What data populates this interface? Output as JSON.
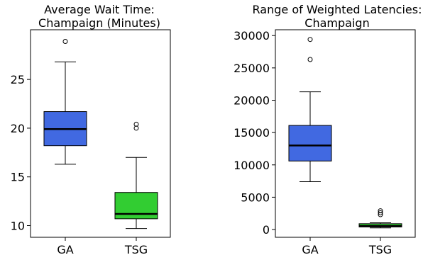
{
  "chart_data": [
    {
      "type": "box",
      "title": "Average Wait Time:\nChampaign (Minutes)",
      "xlabel": "",
      "ylabel": "",
      "categories": [
        "GA",
        "TSG"
      ],
      "ylim": [
        8.8,
        30.1
      ],
      "yticks": [
        10,
        15,
        20,
        25
      ],
      "grid": false,
      "boxes": [
        {
          "category": "GA",
          "color": "#4169e1",
          "whisker_low": 16.3,
          "q1": 18.2,
          "median": 19.9,
          "q3": 21.7,
          "whisker_high": 26.8,
          "outliers": [
            28.9
          ]
        },
        {
          "category": "TSG",
          "color": "#32cd32",
          "whisker_low": 9.7,
          "q1": 10.7,
          "median": 11.2,
          "q3": 13.4,
          "whisker_high": 17.0,
          "outliers": [
            20.0,
            20.4
          ]
        }
      ]
    },
    {
      "type": "box",
      "title": "Range of Weighted Latencies:\nChampaign",
      "xlabel": "",
      "ylabel": "",
      "categories": [
        "GA",
        "TSG"
      ],
      "ylim": [
        -1200,
        30900
      ],
      "yticks": [
        0,
        5000,
        10000,
        15000,
        20000,
        25000,
        30000
      ],
      "grid": false,
      "boxes": [
        {
          "category": "GA",
          "color": "#4169e1",
          "whisker_low": 7400,
          "q1": 10600,
          "median": 13000,
          "q3": 16100,
          "whisker_high": 21300,
          "outliers": [
            26300,
            29400
          ]
        },
        {
          "category": "TSG",
          "color": "#32cd32",
          "whisker_low": 250,
          "q1": 400,
          "median": 550,
          "q3": 900,
          "whisker_high": 1050,
          "outliers": [
            2300,
            2600,
            2900
          ]
        }
      ]
    }
  ]
}
